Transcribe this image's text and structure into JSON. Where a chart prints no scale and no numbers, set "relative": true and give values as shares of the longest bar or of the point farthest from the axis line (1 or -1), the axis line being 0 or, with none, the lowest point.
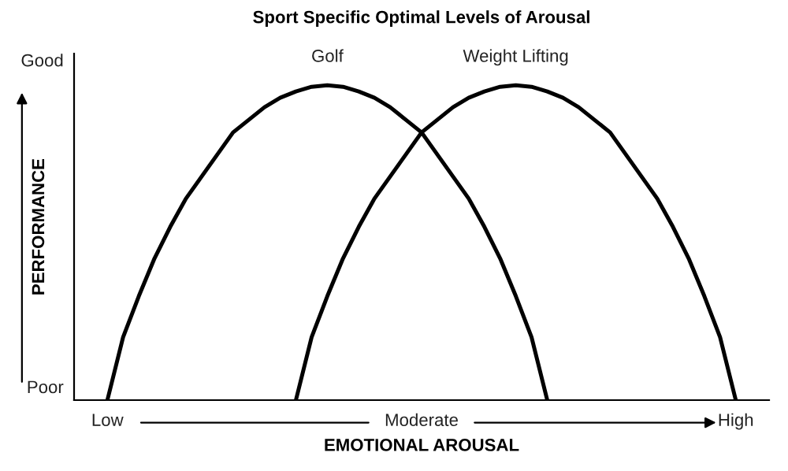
{
  "chart_data": {
    "type": "line",
    "title": "Sport Specific Optimal Levels of Arousal",
    "xlabel": "EMOTIONAL AROUSAL",
    "ylabel": "PERFORMANCE",
    "relative": true,
    "categories": [
      "Low",
      null,
      null,
      null,
      null,
      null,
      null,
      null,
      null,
      null,
      null,
      null,
      null,
      null,
      null,
      null,
      null,
      null,
      null,
      null,
      "Moderate",
      null,
      null,
      null,
      null,
      null,
      null,
      null,
      null,
      null,
      null,
      null,
      null,
      null,
      null,
      null,
      null,
      null,
      null,
      null,
      "High"
    ],
    "annotations": [
      "Good",
      "Poor"
    ],
    "series": [
      {
        "name": "Golf",
        "color": "#000000",
        "values": [
          0,
          0.2,
          0.33,
          0.45,
          0.55,
          0.64,
          0.71,
          0.78,
          0.85,
          0.89,
          0.93,
          0.96,
          0.98,
          0.995,
          1,
          0.995,
          0.98,
          0.96,
          0.93,
          0.89,
          0.85,
          0.78,
          0.71,
          0.64,
          0.55,
          0.45,
          0.33,
          0.2,
          0,
          null,
          null,
          null,
          null,
          null,
          null,
          null,
          null,
          null,
          null,
          null,
          null
        ]
      },
      {
        "name": "Weight Lifting",
        "color": "#000000",
        "values": [
          null,
          null,
          null,
          null,
          null,
          null,
          null,
          null,
          null,
          null,
          null,
          null,
          0,
          0.2,
          0.33,
          0.45,
          0.55,
          0.64,
          0.71,
          0.78,
          0.85,
          0.89,
          0.93,
          0.96,
          0.98,
          0.995,
          1,
          0.995,
          0.98,
          0.96,
          0.93,
          0.89,
          0.85,
          0.78,
          0.71,
          0.64,
          0.55,
          0.45,
          0.33,
          0.2,
          0
        ]
      }
    ],
    "marker": "none",
    "line_style": "solid",
    "grid": false,
    "legend": false
  }
}
